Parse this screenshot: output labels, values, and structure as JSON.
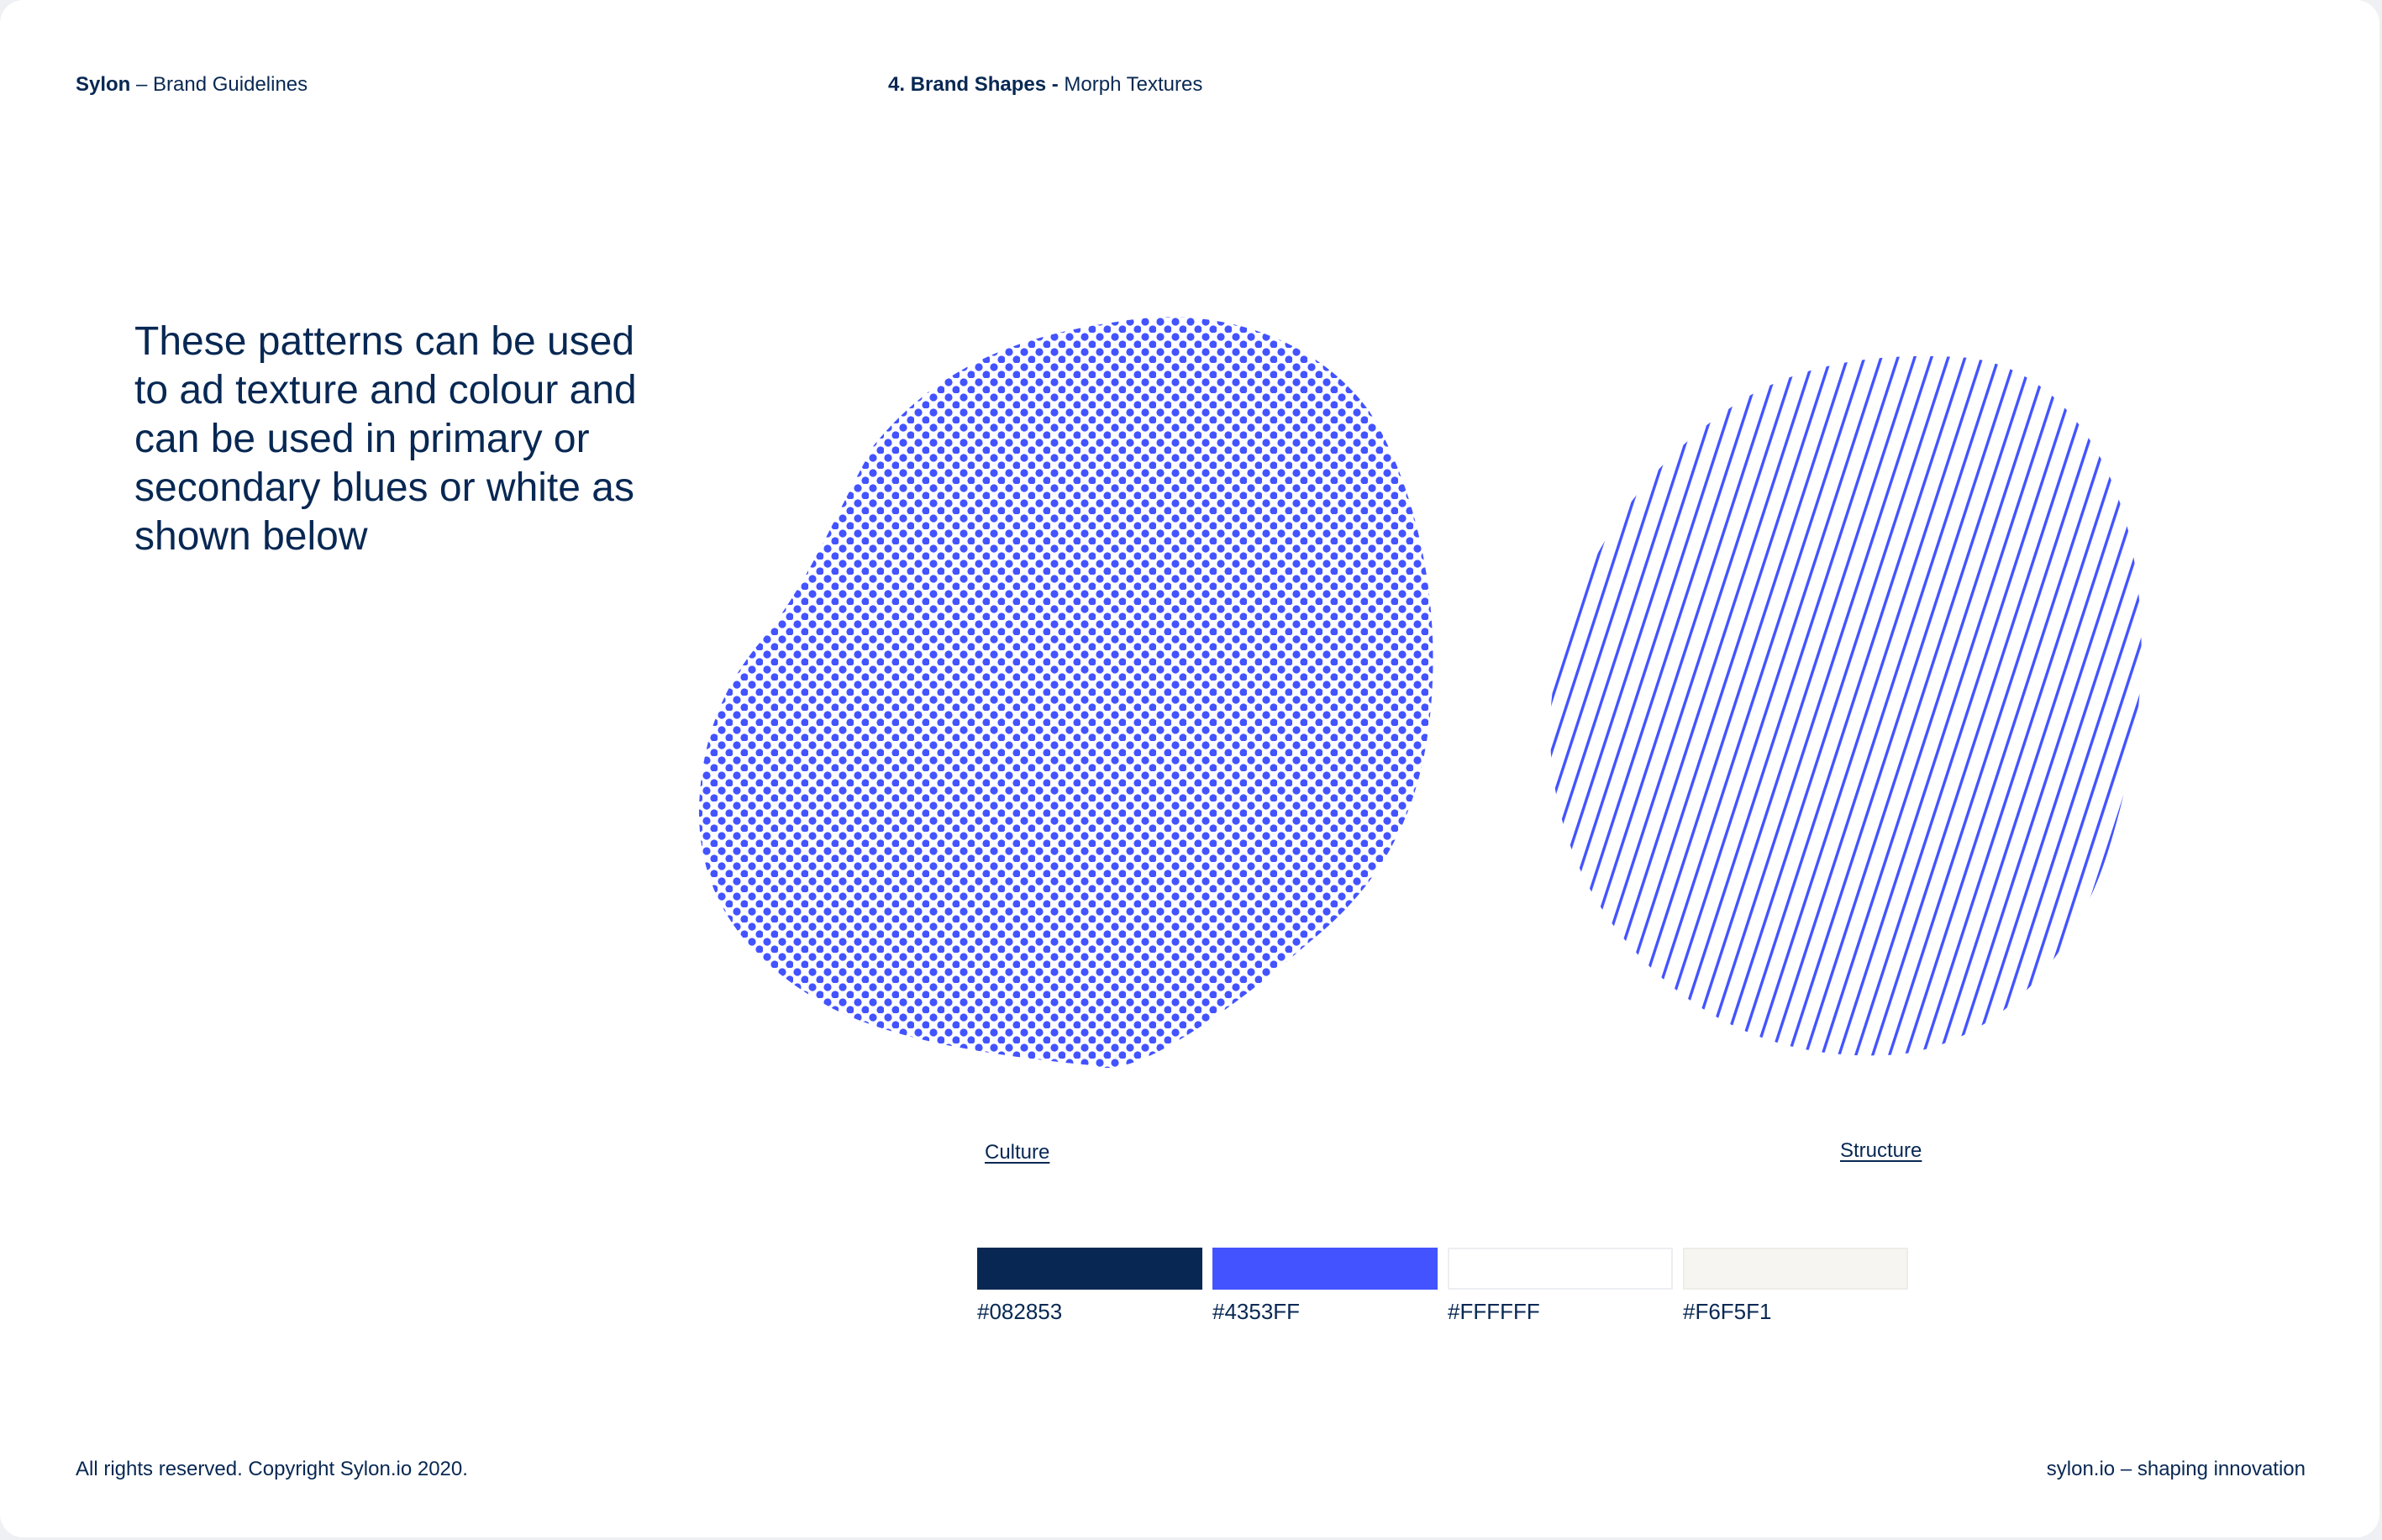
{
  "header": {
    "brand": "Sylon",
    "subtitle": "– Brand Guidelines",
    "section_bold": "4. Brand Shapes -",
    "section": "Morph Textures"
  },
  "intro_text": "These patterns can be used to ad texture and colour and can be used in primary or secondary blues or white as shown below",
  "textures": [
    {
      "label": "Culture",
      "pattern": "dots",
      "color": "#4353FF"
    },
    {
      "label": "Structure",
      "pattern": "diagonal-lines",
      "color": "#4353FF"
    }
  ],
  "swatches": [
    {
      "hex": "#082853",
      "color": "#082853"
    },
    {
      "hex": "#4353FF",
      "color": "#4353FF"
    },
    {
      "hex": "#FFFFFF",
      "color": "#FFFFFF"
    },
    {
      "hex": "#F6F5F1",
      "color": "#F6F5F1"
    }
  ],
  "footer": {
    "copyright": "All rights reserved. Copyright Sylon.io 2020.",
    "tagline": "sylon.io – shaping innovation"
  }
}
